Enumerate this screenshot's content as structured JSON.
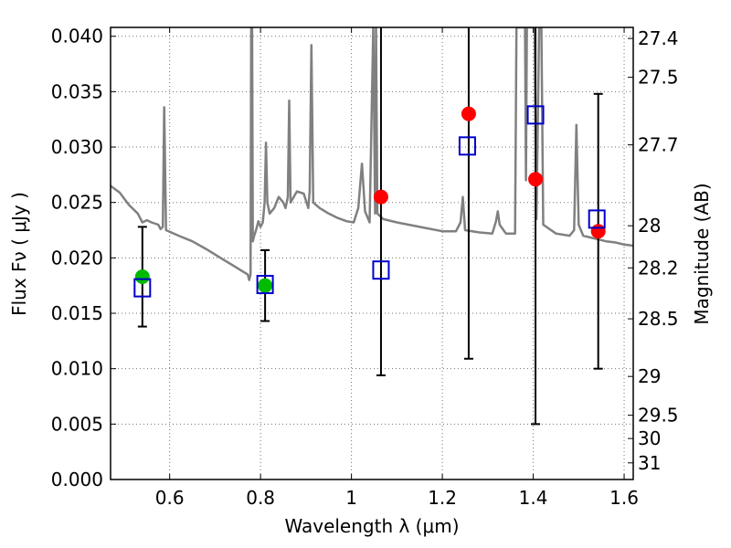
{
  "chart_data": {
    "type": "scatter",
    "title": "",
    "xlabel": "Wavelength  λ (μm)",
    "ylabel": "Flux  Fν  ( μJy )",
    "ylabel_right": "Magnitude (AB)",
    "xlim": [
      0.47,
      1.62
    ],
    "ylim": [
      0.0,
      0.0408
    ],
    "xticks": [
      {
        "value": 0.6,
        "label": "0.6"
      },
      {
        "value": 0.8,
        "label": "0.8"
      },
      {
        "value": 1.0,
        "label": "1"
      },
      {
        "value": 1.2,
        "label": "1.2"
      },
      {
        "value": 1.4,
        "label": "1.4"
      },
      {
        "value": 1.6,
        "label": "1.6"
      }
    ],
    "yticks": [
      {
        "value": 0.0,
        "label": "0.000"
      },
      {
        "value": 0.005,
        "label": "0.005"
      },
      {
        "value": 0.01,
        "label": "0.010"
      },
      {
        "value": 0.015,
        "label": "0.015"
      },
      {
        "value": 0.02,
        "label": "0.020"
      },
      {
        "value": 0.025,
        "label": "0.025"
      },
      {
        "value": 0.03,
        "label": "0.030"
      },
      {
        "value": 0.035,
        "label": "0.035"
      },
      {
        "value": 0.04,
        "label": "0.040"
      }
    ],
    "right_ticks": [
      {
        "flux": 0.0398,
        "label": "27.4"
      },
      {
        "flux": 0.0363,
        "label": "27.5"
      },
      {
        "flux": 0.0302,
        "label": "27.7"
      },
      {
        "flux": 0.0229,
        "label": "28"
      },
      {
        "flux": 0.0191,
        "label": "28.2"
      },
      {
        "flux": 0.0145,
        "label": "28.5"
      },
      {
        "flux": 0.0093,
        "label": "29"
      },
      {
        "flux": 0.0058,
        "label": "29.5"
      },
      {
        "flux": 0.0037,
        "label": "30"
      },
      {
        "flux": 0.0015,
        "label": "31"
      }
    ],
    "grid": true,
    "series": [
      {
        "name": "model spectrum",
        "kind": "line",
        "color": "#808080",
        "points": [
          [
            0.47,
            0.0265
          ],
          [
            0.49,
            0.0259
          ],
          [
            0.51,
            0.0248
          ],
          [
            0.53,
            0.024
          ],
          [
            0.54,
            0.0232
          ],
          [
            0.55,
            0.0234
          ],
          [
            0.56,
            0.0232
          ],
          [
            0.575,
            0.023
          ],
          [
            0.58,
            0.0226
          ],
          [
            0.585,
            0.0228
          ],
          [
            0.588,
            0.0336
          ],
          [
            0.592,
            0.0225
          ],
          [
            0.62,
            0.022
          ],
          [
            0.65,
            0.0215
          ],
          [
            0.68,
            0.0208
          ],
          [
            0.7,
            0.0203
          ],
          [
            0.72,
            0.0198
          ],
          [
            0.74,
            0.0193
          ],
          [
            0.76,
            0.0188
          ],
          [
            0.772,
            0.0185
          ],
          [
            0.775,
            0.018
          ],
          [
            0.778,
            0.0185
          ],
          [
            0.7795,
            0.0408
          ],
          [
            0.7815,
            0.0408
          ],
          [
            0.783,
            0.0215
          ],
          [
            0.786,
            0.022
          ],
          [
            0.79,
            0.0225
          ],
          [
            0.795,
            0.0233
          ],
          [
            0.8,
            0.0228
          ],
          [
            0.805,
            0.0232
          ],
          [
            0.809,
            0.025
          ],
          [
            0.812,
            0.0304
          ],
          [
            0.815,
            0.025
          ],
          [
            0.82,
            0.024
          ],
          [
            0.83,
            0.0245
          ],
          [
            0.84,
            0.0255
          ],
          [
            0.85,
            0.025
          ],
          [
            0.855,
            0.0245
          ],
          [
            0.86,
            0.0255
          ],
          [
            0.863,
            0.0342
          ],
          [
            0.866,
            0.025
          ],
          [
            0.88,
            0.026
          ],
          [
            0.895,
            0.0258
          ],
          [
            0.905,
            0.0245
          ],
          [
            0.908,
            0.026
          ],
          [
            0.912,
            0.0392
          ],
          [
            0.916,
            0.025
          ],
          [
            0.93,
            0.0245
          ],
          [
            0.95,
            0.024
          ],
          [
            0.97,
            0.0236
          ],
          [
            0.99,
            0.0233
          ],
          [
            1.005,
            0.0232
          ],
          [
            1.015,
            0.0245
          ],
          [
            1.023,
            0.0285
          ],
          [
            1.03,
            0.0242
          ],
          [
            1.04,
            0.0232
          ],
          [
            1.048,
            0.0408
          ],
          [
            1.052,
            0.024
          ],
          [
            1.054,
            0.0408
          ],
          [
            1.057,
            0.024
          ],
          [
            1.07,
            0.0235
          ],
          [
            1.1,
            0.0232
          ],
          [
            1.15,
            0.0228
          ],
          [
            1.2,
            0.0224
          ],
          [
            1.23,
            0.0224
          ],
          [
            1.24,
            0.0232
          ],
          [
            1.245,
            0.0255
          ],
          [
            1.25,
            0.0225
          ],
          [
            1.28,
            0.0223
          ],
          [
            1.31,
            0.0222
          ],
          [
            1.318,
            0.0233
          ],
          [
            1.322,
            0.0242
          ],
          [
            1.326,
            0.023
          ],
          [
            1.34,
            0.0222
          ],
          [
            1.36,
            0.0222
          ],
          [
            1.363,
            0.0408
          ],
          [
            1.382,
            0.0408
          ],
          [
            1.384,
            0.027
          ],
          [
            1.386,
            0.0408
          ],
          [
            1.403,
            0.0408
          ],
          [
            1.407,
            0.0235
          ],
          [
            1.413,
            0.0408
          ],
          [
            1.418,
            0.0408
          ],
          [
            1.422,
            0.023
          ],
          [
            1.45,
            0.0222
          ],
          [
            1.48,
            0.022
          ],
          [
            1.49,
            0.0225
          ],
          [
            1.495,
            0.032
          ],
          [
            1.5,
            0.023
          ],
          [
            1.51,
            0.022
          ],
          [
            1.56,
            0.0215
          ],
          [
            1.58,
            0.0214
          ],
          [
            1.6,
            0.0212
          ],
          [
            1.62,
            0.0211
          ]
        ]
      },
      {
        "name": "observed (green)",
        "kind": "point",
        "color": "#00bb00",
        "points": [
          {
            "x": 0.54,
            "y": 0.0183,
            "ylow": 0.0138,
            "yhigh": 0.0228
          },
          {
            "x": 0.81,
            "y": 0.0175,
            "ylow": 0.0143,
            "yhigh": 0.0207
          }
        ]
      },
      {
        "name": "observed (red)",
        "kind": "point",
        "color": "#ff0000",
        "points": [
          {
            "x": 1.065,
            "y": 0.0255,
            "ylow": 0.0094,
            "yhigh": 0.0408
          },
          {
            "x": 1.258,
            "y": 0.033,
            "ylow": 0.0109,
            "yhigh": 0.0408
          },
          {
            "x": 1.405,
            "y": 0.0271,
            "ylow": 0.005,
            "yhigh": 0.0408
          },
          {
            "x": 1.543,
            "y": 0.0224,
            "ylow": 0.01,
            "yhigh": 0.0348
          }
        ]
      },
      {
        "name": "model photometry",
        "kind": "square",
        "color": "#0000cc",
        "points": [
          {
            "x": 0.54,
            "y": 0.0173
          },
          {
            "x": 0.81,
            "y": 0.0176
          },
          {
            "x": 1.065,
            "y": 0.0189
          },
          {
            "x": 1.255,
            "y": 0.0301
          },
          {
            "x": 1.405,
            "y": 0.0329
          },
          {
            "x": 1.54,
            "y": 0.0235
          }
        ]
      }
    ]
  }
}
